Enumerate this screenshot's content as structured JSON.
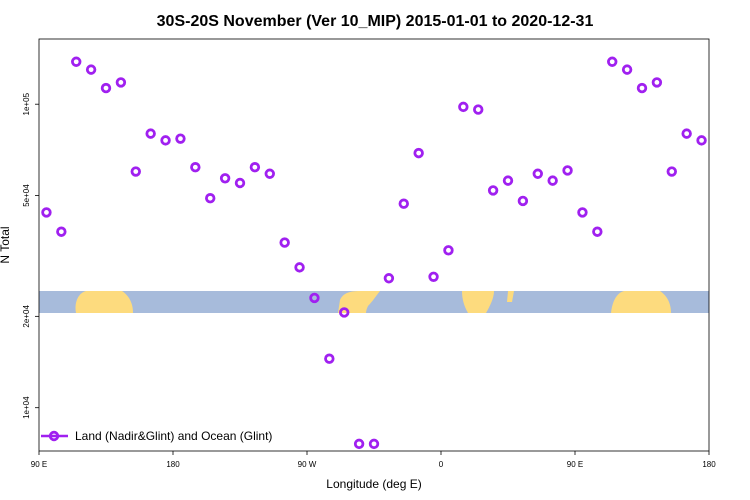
{
  "chart_data": {
    "type": "scatter",
    "title": "30S-20S November (Ver 10_MIP)   2015-01-01 to 2020-12-31",
    "xlabel": "Longitude (deg E)",
    "ylabel": "N Total",
    "xlim": [
      90,
      540
    ],
    "ylim_log": [
      7200,
      164000
    ],
    "x_ticks": [
      {
        "value": 90,
        "label": "90 E"
      },
      {
        "value": 180,
        "label": "180"
      },
      {
        "value": 270,
        "label": "90 W"
      },
      {
        "value": 360,
        "label": "0"
      },
      {
        "value": 450,
        "label": "90 E"
      },
      {
        "value": 540,
        "label": "180"
      }
    ],
    "y_ticks": [
      {
        "value": 10000,
        "label": "1e+04"
      },
      {
        "value": 20000,
        "label": "2e+04"
      },
      {
        "value": 50000,
        "label": "5e+04"
      },
      {
        "value": 100000,
        "label": "1e+05"
      }
    ],
    "series": [
      {
        "name": "Land (Nadir&Glint) and Ocean (Glint)",
        "color": "#a020f0",
        "points": [
          [
            95,
            44000
          ],
          [
            105,
            38000
          ],
          [
            115,
            138000
          ],
          [
            125,
            130000
          ],
          [
            135,
            113000
          ],
          [
            145,
            118000
          ],
          [
            155,
            60000
          ],
          [
            165,
            80000
          ],
          [
            175,
            76000
          ],
          [
            185,
            77000
          ],
          [
            195,
            62000
          ],
          [
            205,
            49000
          ],
          [
            215,
            57000
          ],
          [
            225,
            55000
          ],
          [
            235,
            62000
          ],
          [
            245,
            59000
          ],
          [
            255,
            35000
          ],
          [
            265,
            29000
          ],
          [
            275,
            23000
          ],
          [
            285,
            14500
          ],
          [
            295,
            20600
          ],
          [
            305,
            7600
          ],
          [
            315,
            7600
          ],
          [
            325,
            26700
          ],
          [
            335,
            47000
          ],
          [
            345,
            69000
          ],
          [
            355,
            27000
          ],
          [
            365,
            33000
          ],
          [
            375,
            98000
          ],
          [
            385,
            96000
          ],
          [
            395,
            52000
          ],
          [
            405,
            56000
          ],
          [
            415,
            48000
          ],
          [
            425,
            59000
          ],
          [
            435,
            56000
          ],
          [
            445,
            60500
          ],
          [
            455,
            44000
          ],
          [
            465,
            38000
          ],
          [
            475,
            138000
          ],
          [
            485,
            130000
          ],
          [
            495,
            113000
          ],
          [
            505,
            118000
          ],
          [
            515,
            60000
          ],
          [
            525,
            80000
          ],
          [
            535,
            76000
          ]
        ]
      }
    ],
    "legend": {
      "placement": "bottom-left",
      "label": "Land (Nadir&Glint) and Ocean (Glint)"
    },
    "colors": {
      "ocean": "#a7bbdb",
      "land": "#fddb7e",
      "marker": "#a020f0"
    }
  }
}
